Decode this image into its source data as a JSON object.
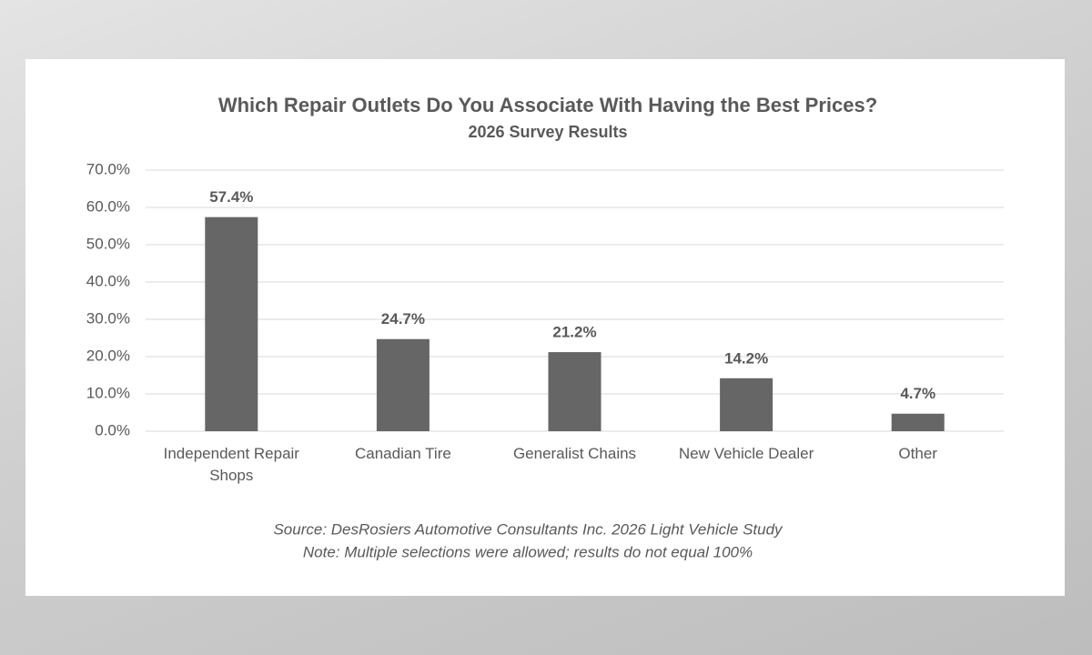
{
  "chart_data": {
    "type": "bar",
    "title": "Which Repair Outlets Do You Associate With Having the Best Prices?",
    "subtitle": "2026 Survey Results",
    "categories": [
      "Independent Repair Shops",
      "Canadian Tire",
      "Generalist Chains",
      "New Vehicle Dealer",
      "Other"
    ],
    "values": [
      57.4,
      24.7,
      21.2,
      14.2,
      4.7
    ],
    "value_labels": [
      "57.4%",
      "24.7%",
      "21.2%",
      "14.2%",
      "4.7%"
    ],
    "color": "#666666",
    "ylim": [
      0,
      70
    ],
    "yticks": [
      {
        "value": 0,
        "label": "0.0%"
      },
      {
        "value": 10,
        "label": "10.0%"
      },
      {
        "value": 20,
        "label": "20.0%"
      },
      {
        "value": 30,
        "label": "30.0%"
      },
      {
        "value": 40,
        "label": "40.0%"
      },
      {
        "value": 50,
        "label": "50.0%"
      },
      {
        "value": 60,
        "label": "60.0%"
      },
      {
        "value": 70,
        "label": "70.0%"
      }
    ],
    "grid": true,
    "source": "Source: DesRosiers Automotive Consultants Inc. 2026 Light Vehicle Study",
    "note": "Note: Multiple selections were allowed; results do not equal 100%"
  }
}
